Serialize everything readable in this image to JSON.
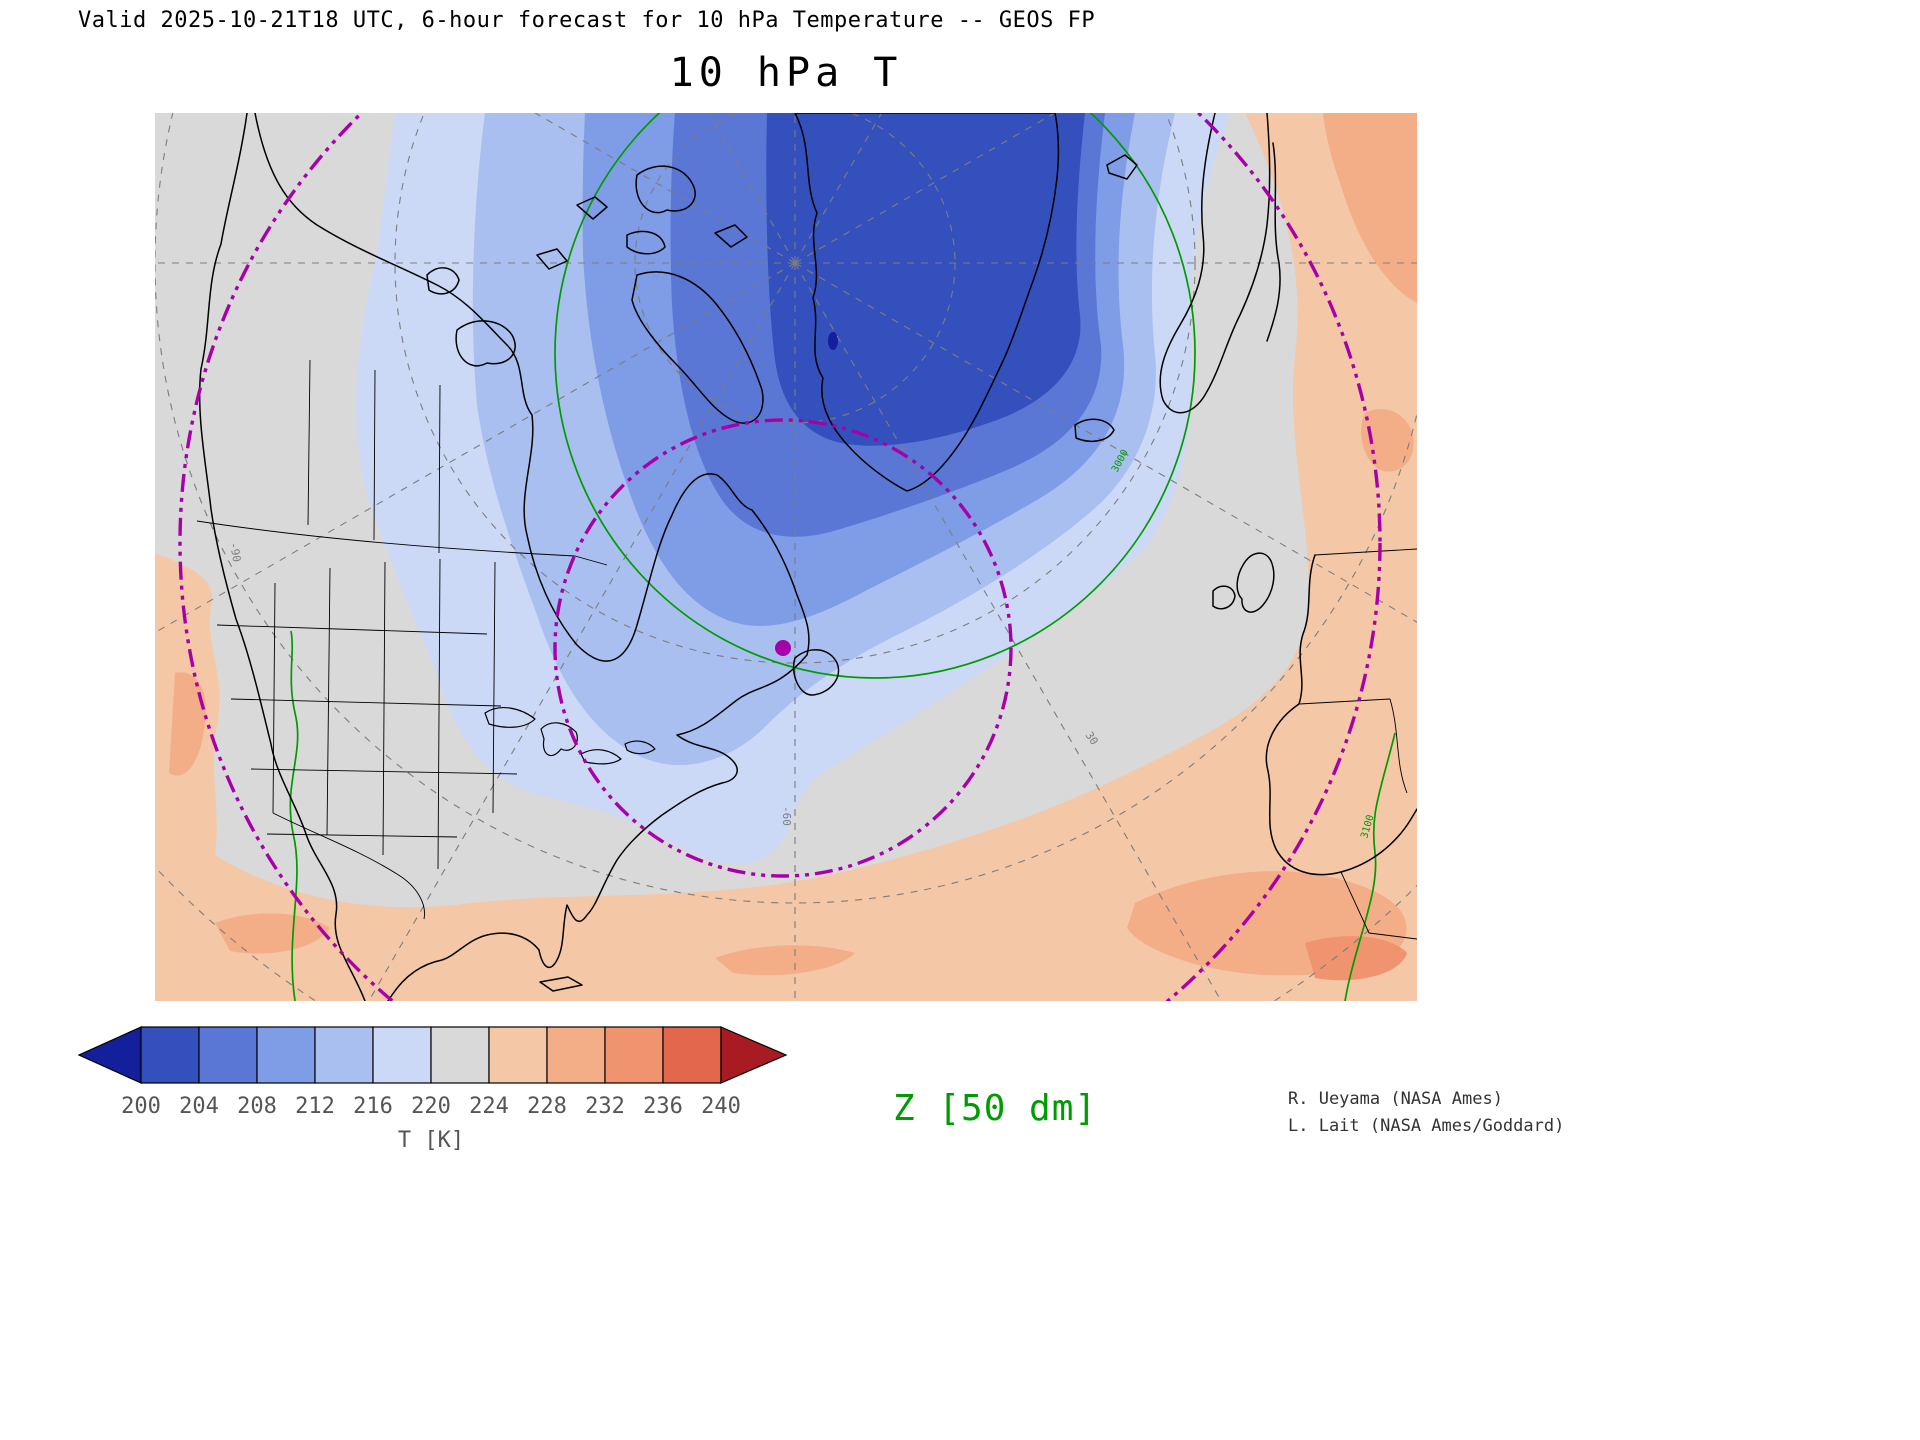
{
  "header": {
    "text": "Valid 2025-10-21T18 UTC, 6-hour forecast for 10 hPa Temperature -- GEOS FP"
  },
  "title": {
    "text": "10 hPa T"
  },
  "map": {
    "graticule_labels": {
      "lon_neg90": "-90",
      "lon_neg60": "-60",
      "lon_30": "30"
    },
    "contour_labels": {
      "z3000": "3000",
      "z3100": "3100"
    }
  },
  "colorbar": {
    "title": "T [K]",
    "ticks": [
      "200",
      "204",
      "208",
      "212",
      "216",
      "220",
      "224",
      "228",
      "232",
      "236",
      "240"
    ],
    "segment_colors": [
      "#3450bd",
      "#5a77d6",
      "#7f9ce6",
      "#a9bff0",
      "#ccd9f6",
      "#d9d9d9",
      "#f4c7a6",
      "#f3ae88",
      "#ef946e",
      "#e2674c"
    ],
    "arrow_left_color": "#141f9c",
    "arrow_right_color": "#a81b22"
  },
  "annotations": {
    "z_contour_label": "Z [50 dm]"
  },
  "credits": {
    "line1": "R. Ueyama (NASA Ames)",
    "line2": "L. Lait (NASA Ames/Goddard)"
  },
  "colors": {
    "purple": "#a800a8",
    "green": "#009b00",
    "graticule": "#7d7d7d"
  }
}
